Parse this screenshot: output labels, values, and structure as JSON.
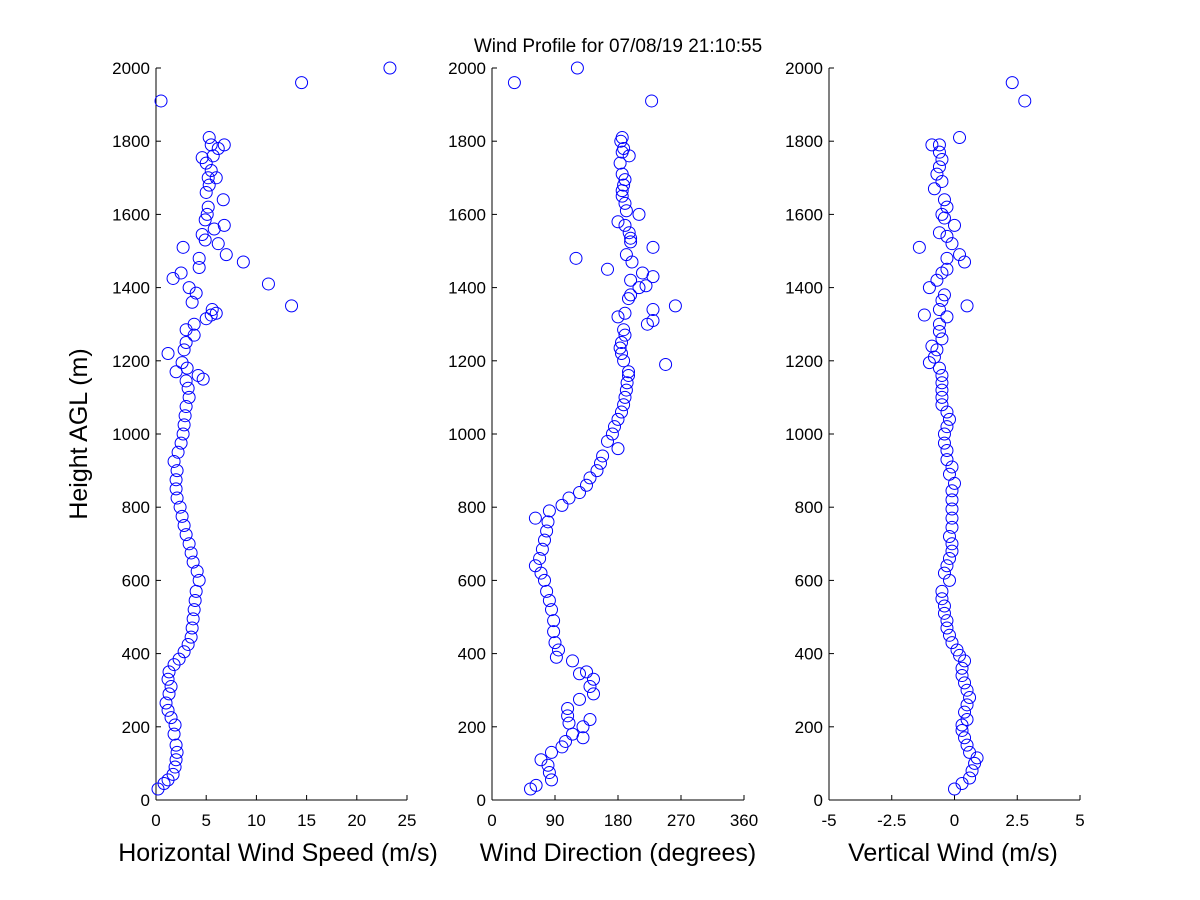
{
  "figure": {
    "title": "Wind Profile for  07/08/19 21:10:55",
    "ylabel": "Height AGL (m)",
    "marker_color": "#0000ff"
  },
  "chart_data": [
    {
      "type": "scatter",
      "xlabel": "Horizontal Wind Speed (m/s)",
      "ylabel": "Height AGL (m)",
      "xlim": [
        0,
        25
      ],
      "ylim": [
        0,
        2000
      ],
      "xticks": [
        "0",
        "5",
        "10",
        "15",
        "20",
        "25"
      ],
      "yticks": [
        "0",
        "200",
        "400",
        "600",
        "800",
        "1000",
        "1200",
        "1400",
        "1600",
        "1800",
        "2000"
      ],
      "grid": false,
      "points": [
        [
          0.2,
          30
        ],
        [
          0.8,
          45
        ],
        [
          1.2,
          55
        ],
        [
          1.7,
          70
        ],
        [
          1.9,
          90
        ],
        [
          2.0,
          110
        ],
        [
          2.1,
          130
        ],
        [
          2.0,
          150
        ],
        [
          1.8,
          180
        ],
        [
          1.9,
          205
        ],
        [
          1.5,
          225
        ],
        [
          1.2,
          245
        ],
        [
          1.0,
          265
        ],
        [
          1.3,
          290
        ],
        [
          1.5,
          310
        ],
        [
          1.2,
          330
        ],
        [
          1.3,
          350
        ],
        [
          1.8,
          370
        ],
        [
          2.3,
          385
        ],
        [
          2.8,
          405
        ],
        [
          3.2,
          425
        ],
        [
          3.5,
          445
        ],
        [
          3.6,
          470
        ],
        [
          3.7,
          495
        ],
        [
          3.8,
          520
        ],
        [
          3.9,
          545
        ],
        [
          4.0,
          570
        ],
        [
          4.3,
          600
        ],
        [
          4.1,
          625
        ],
        [
          3.7,
          650
        ],
        [
          3.5,
          675
        ],
        [
          3.3,
          700
        ],
        [
          3.0,
          725
        ],
        [
          2.8,
          750
        ],
        [
          2.6,
          775
        ],
        [
          2.4,
          800
        ],
        [
          2.1,
          825
        ],
        [
          2.0,
          850
        ],
        [
          2.0,
          875
        ],
        [
          2.1,
          900
        ],
        [
          1.8,
          925
        ],
        [
          2.2,
          950
        ],
        [
          2.5,
          975
        ],
        [
          2.7,
          1000
        ],
        [
          2.8,
          1025
        ],
        [
          2.9,
          1050
        ],
        [
          3.0,
          1075
        ],
        [
          3.3,
          1100
        ],
        [
          3.2,
          1125
        ],
        [
          3.0,
          1145
        ],
        [
          4.7,
          1150
        ],
        [
          4.2,
          1160
        ],
        [
          3.1,
          1180
        ],
        [
          2.6,
          1195
        ],
        [
          2.0,
          1170
        ],
        [
          1.2,
          1220
        ],
        [
          2.8,
          1230
        ],
        [
          3.0,
          1250
        ],
        [
          3.8,
          1270
        ],
        [
          3.0,
          1285
        ],
        [
          3.8,
          1300
        ],
        [
          5.0,
          1315
        ],
        [
          5.5,
          1325
        ],
        [
          6.0,
          1330
        ],
        [
          5.6,
          1340
        ],
        [
          3.6,
          1360
        ],
        [
          4.0,
          1385
        ],
        [
          3.3,
          1400
        ],
        [
          13.5,
          1350
        ],
        [
          11.2,
          1410
        ],
        [
          1.7,
          1425
        ],
        [
          2.5,
          1440
        ],
        [
          4.3,
          1455
        ],
        [
          8.7,
          1470
        ],
        [
          4.3,
          1480
        ],
        [
          7.0,
          1490
        ],
        [
          2.7,
          1510
        ],
        [
          6.2,
          1520
        ],
        [
          4.9,
          1530
        ],
        [
          4.6,
          1545
        ],
        [
          5.8,
          1560
        ],
        [
          6.8,
          1570
        ],
        [
          4.9,
          1585
        ],
        [
          5.1,
          1600
        ],
        [
          5.2,
          1620
        ],
        [
          6.7,
          1640
        ],
        [
          5.0,
          1660
        ],
        [
          5.3,
          1680
        ],
        [
          5.2,
          1700
        ],
        [
          6.0,
          1700
        ],
        [
          5.5,
          1720
        ],
        [
          5.0,
          1740
        ],
        [
          4.6,
          1755
        ],
        [
          5.7,
          1760
        ],
        [
          6.2,
          1780
        ],
        [
          5.5,
          1790
        ],
        [
          6.8,
          1790
        ],
        [
          5.3,
          1810
        ],
        [
          0.5,
          1910
        ],
        [
          14.5,
          1960
        ],
        [
          23.3,
          2000
        ]
      ]
    },
    {
      "type": "scatter",
      "xlabel": "Wind Direction (degrees)",
      "ylabel": "",
      "xlim": [
        0,
        360
      ],
      "ylim": [
        0,
        2000
      ],
      "xticks": [
        "0",
        "90",
        "180",
        "270",
        "360"
      ],
      "yticks": [
        "0",
        "200",
        "400",
        "600",
        "800",
        "1000",
        "1200",
        "1400",
        "1600",
        "1800",
        "2000"
      ],
      "grid": false,
      "points": [
        [
          55,
          30
        ],
        [
          63,
          40
        ],
        [
          85,
          55
        ],
        [
          82,
          75
        ],
        [
          80,
          95
        ],
        [
          70,
          110
        ],
        [
          85,
          130
        ],
        [
          100,
          145
        ],
        [
          105,
          160
        ],
        [
          115,
          180
        ],
        [
          130,
          170
        ],
        [
          130,
          200
        ],
        [
          110,
          210
        ],
        [
          108,
          230
        ],
        [
          108,
          250
        ],
        [
          140,
          220
        ],
        [
          125,
          275
        ],
        [
          145,
          290
        ],
        [
          140,
          310
        ],
        [
          145,
          330
        ],
        [
          125,
          345
        ],
        [
          135,
          350
        ],
        [
          115,
          380
        ],
        [
          92,
          390
        ],
        [
          95,
          410
        ],
        [
          90,
          430
        ],
        [
          88,
          460
        ],
        [
          88,
          490
        ],
        [
          85,
          520
        ],
        [
          82,
          545
        ],
        [
          78,
          570
        ],
        [
          75,
          600
        ],
        [
          70,
          620
        ],
        [
          62,
          640
        ],
        [
          68,
          660
        ],
        [
          72,
          685
        ],
        [
          75,
          710
        ],
        [
          78,
          735
        ],
        [
          80,
          760
        ],
        [
          62,
          770
        ],
        [
          82,
          790
        ],
        [
          100,
          805
        ],
        [
          110,
          825
        ],
        [
          125,
          840
        ],
        [
          135,
          860
        ],
        [
          140,
          880
        ],
        [
          150,
          900
        ],
        [
          155,
          920
        ],
        [
          158,
          940
        ],
        [
          180,
          960
        ],
        [
          165,
          980
        ],
        [
          172,
          1000
        ],
        [
          175,
          1020
        ],
        [
          180,
          1040
        ],
        [
          185,
          1060
        ],
        [
          188,
          1080
        ],
        [
          190,
          1100
        ],
        [
          192,
          1120
        ],
        [
          193,
          1140
        ],
        [
          195,
          1160
        ],
        [
          195,
          1170
        ],
        [
          248,
          1190
        ],
        [
          188,
          1200
        ],
        [
          185,
          1220
        ],
        [
          183,
          1235
        ],
        [
          185,
          1250
        ],
        [
          190,
          1270
        ],
        [
          188,
          1285
        ],
        [
          222,
          1300
        ],
        [
          180,
          1320
        ],
        [
          230,
          1310
        ],
        [
          190,
          1330
        ],
        [
          230,
          1340
        ],
        [
          262,
          1350
        ],
        [
          195,
          1370
        ],
        [
          198,
          1380
        ],
        [
          210,
          1400
        ],
        [
          220,
          1405
        ],
        [
          230,
          1430
        ],
        [
          215,
          1440
        ],
        [
          198,
          1420
        ],
        [
          165,
          1450
        ],
        [
          200,
          1470
        ],
        [
          120,
          1480
        ],
        [
          192,
          1490
        ],
        [
          230,
          1510
        ],
        [
          198,
          1525
        ],
        [
          198,
          1535
        ],
        [
          196,
          1550
        ],
        [
          180,
          1580
        ],
        [
          190,
          1570
        ],
        [
          210,
          1600
        ],
        [
          192,
          1610
        ],
        [
          190,
          1630
        ],
        [
          186,
          1650
        ],
        [
          186,
          1665
        ],
        [
          188,
          1680
        ],
        [
          190,
          1695
        ],
        [
          186,
          1710
        ],
        [
          183,
          1740
        ],
        [
          196,
          1760
        ],
        [
          186,
          1770
        ],
        [
          188,
          1780
        ],
        [
          184,
          1800
        ],
        [
          186,
          1810
        ],
        [
          228,
          1910
        ],
        [
          32,
          1960
        ],
        [
          122,
          2000
        ]
      ]
    },
    {
      "type": "scatter",
      "xlabel": "Vertical Wind (m/s)",
      "ylabel": "",
      "xlim": [
        -5,
        5
      ],
      "ylim": [
        0,
        2000
      ],
      "xticks": [
        "-5",
        "-2.5",
        "0",
        "2.5",
        "5"
      ],
      "yticks": [
        "0",
        "200",
        "400",
        "600",
        "800",
        "1000",
        "1200",
        "1400",
        "1600",
        "1800",
        "2000"
      ],
      "grid": false,
      "points": [
        [
          0.0,
          30
        ],
        [
          0.3,
          45
        ],
        [
          0.6,
          60
        ],
        [
          0.7,
          80
        ],
        [
          0.8,
          100
        ],
        [
          0.9,
          115
        ],
        [
          0.6,
          130
        ],
        [
          0.5,
          150
        ],
        [
          0.4,
          170
        ],
        [
          0.3,
          190
        ],
        [
          0.3,
          205
        ],
        [
          0.5,
          220
        ],
        [
          0.4,
          240
        ],
        [
          0.5,
          260
        ],
        [
          0.6,
          280
        ],
        [
          0.5,
          300
        ],
        [
          0.4,
          320
        ],
        [
          0.3,
          340
        ],
        [
          0.3,
          360
        ],
        [
          0.4,
          380
        ],
        [
          0.2,
          395
        ],
        [
          0.1,
          410
        ],
        [
          -0.1,
          430
        ],
        [
          -0.2,
          450
        ],
        [
          -0.3,
          470
        ],
        [
          -0.3,
          490
        ],
        [
          -0.4,
          510
        ],
        [
          -0.4,
          530
        ],
        [
          -0.5,
          550
        ],
        [
          -0.5,
          570
        ],
        [
          -0.2,
          600
        ],
        [
          -0.4,
          620
        ],
        [
          -0.3,
          640
        ],
        [
          -0.2,
          660
        ],
        [
          -0.1,
          680
        ],
        [
          -0.1,
          700
        ],
        [
          -0.2,
          720
        ],
        [
          -0.1,
          745
        ],
        [
          -0.1,
          770
        ],
        [
          -0.1,
          795
        ],
        [
          -0.1,
          820
        ],
        [
          -0.1,
          845
        ],
        [
          0.0,
          865
        ],
        [
          -0.2,
          890
        ],
        [
          -0.1,
          910
        ],
        [
          -0.3,
          930
        ],
        [
          -0.3,
          955
        ],
        [
          -0.4,
          975
        ],
        [
          -0.4,
          1000
        ],
        [
          -0.3,
          1020
        ],
        [
          -0.2,
          1040
        ],
        [
          -0.3,
          1060
        ],
        [
          -0.5,
          1080
        ],
        [
          -0.5,
          1100
        ],
        [
          -0.5,
          1120
        ],
        [
          -0.5,
          1140
        ],
        [
          -0.5,
          1160
        ],
        [
          -0.6,
          1180
        ],
        [
          -1.0,
          1195
        ],
        [
          -0.8,
          1210
        ],
        [
          -0.7,
          1230
        ],
        [
          -0.9,
          1240
        ],
        [
          -0.5,
          1260
        ],
        [
          -0.6,
          1280
        ],
        [
          -0.6,
          1300
        ],
        [
          -1.2,
          1325
        ],
        [
          -0.3,
          1320
        ],
        [
          -0.6,
          1340
        ],
        [
          0.5,
          1350
        ],
        [
          -0.5,
          1365
        ],
        [
          -0.4,
          1380
        ],
        [
          -1.0,
          1400
        ],
        [
          -0.7,
          1420
        ],
        [
          0.4,
          1470
        ],
        [
          -0.5,
          1440
        ],
        [
          -0.3,
          1450
        ],
        [
          -1.4,
          1510
        ],
        [
          -0.3,
          1480
        ],
        [
          0.2,
          1490
        ],
        [
          -0.1,
          1520
        ],
        [
          -0.3,
          1540
        ],
        [
          -0.6,
          1550
        ],
        [
          0.0,
          1570
        ],
        [
          -0.4,
          1590
        ],
        [
          -0.5,
          1600
        ],
        [
          -0.3,
          1620
        ],
        [
          -0.4,
          1640
        ],
        [
          -0.8,
          1670
        ],
        [
          -0.5,
          1690
        ],
        [
          -0.7,
          1710
        ],
        [
          -0.6,
          1730
        ],
        [
          -0.5,
          1750
        ],
        [
          -0.6,
          1770
        ],
        [
          -0.6,
          1790
        ],
        [
          -0.9,
          1790
        ],
        [
          0.2,
          1810
        ],
        [
          2.8,
          1910
        ],
        [
          2.3,
          1960
        ]
      ]
    }
  ]
}
